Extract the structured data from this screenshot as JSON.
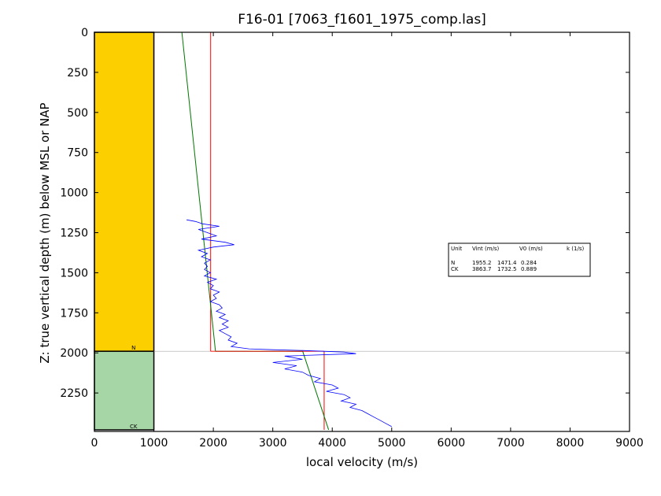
{
  "chart_data": {
    "type": "line",
    "title": "F16-01 [7063_f1601_1975_comp.las]",
    "xlabel": "local velocity (m/s)",
    "ylabel": "Z: true vertical depth (m) below MSL or NAP",
    "xlim": [
      0,
      9000
    ],
    "ylim": [
      2490,
      0
    ],
    "x_ticks": [
      "0",
      "1000",
      "2000",
      "3000",
      "4000",
      "5000",
      "6000",
      "7000",
      "8000",
      "9000"
    ],
    "y_ticks": [
      "0",
      "250",
      "500",
      "750",
      "1000",
      "1250",
      "1500",
      "1750",
      "2000",
      "2250"
    ],
    "grid": false,
    "colors": {
      "unit_N": "#fccf00",
      "unit_CK": "#a6d5a6",
      "well_log": "#0000ff",
      "vint_line": "#ff0000",
      "v0k_line": "#007700",
      "boundary": "#aaaaaa"
    },
    "units": [
      {
        "name": "N",
        "top": 0,
        "base": 1990
      },
      {
        "name": "CK",
        "top": 1990,
        "base": 2480
      }
    ],
    "interval_velocity_lines": [
      {
        "unit": "N",
        "points": [
          [
            1955,
            0
          ],
          [
            1955,
            1990
          ]
        ]
      },
      {
        "unit": "CK",
        "points": [
          [
            3864,
            1990
          ],
          [
            3864,
            2480
          ]
        ]
      }
    ],
    "v0k_lines": [
      {
        "unit": "N",
        "points": [
          [
            1471,
            0
          ],
          [
            2036,
            1990
          ]
        ]
      },
      {
        "unit": "CK",
        "points": [
          [
            3503,
            1990
          ],
          [
            3939,
            2480
          ]
        ]
      }
    ],
    "well_log": {
      "name": "local velocity",
      "points": [
        [
          1550,
          1170
        ],
        [
          1700,
          1180
        ],
        [
          1820,
          1195
        ],
        [
          2100,
          1210
        ],
        [
          1750,
          1230
        ],
        [
          1900,
          1250
        ],
        [
          2050,
          1270
        ],
        [
          1800,
          1290
        ],
        [
          2200,
          1310
        ],
        [
          2350,
          1325
        ],
        [
          2000,
          1340
        ],
        [
          1750,
          1360
        ],
        [
          1900,
          1380
        ],
        [
          1800,
          1400
        ],
        [
          1950,
          1420
        ],
        [
          1850,
          1440
        ],
        [
          1900,
          1460
        ],
        [
          1850,
          1480
        ],
        [
          1950,
          1500
        ],
        [
          1850,
          1520
        ],
        [
          2050,
          1540
        ],
        [
          1900,
          1560
        ],
        [
          2000,
          1580
        ],
        [
          1950,
          1600
        ],
        [
          2100,
          1620
        ],
        [
          2000,
          1640
        ],
        [
          2050,
          1660
        ],
        [
          1950,
          1680
        ],
        [
          2100,
          1700
        ],
        [
          2150,
          1720
        ],
        [
          2050,
          1740
        ],
        [
          2200,
          1760
        ],
        [
          2100,
          1780
        ],
        [
          2250,
          1800
        ],
        [
          2150,
          1820
        ],
        [
          2250,
          1840
        ],
        [
          2100,
          1860
        ],
        [
          2200,
          1880
        ],
        [
          2300,
          1900
        ],
        [
          2250,
          1920
        ],
        [
          2400,
          1940
        ],
        [
          2300,
          1960
        ],
        [
          2600,
          1975
        ],
        [
          3000,
          1980
        ],
        [
          3500,
          1985
        ],
        [
          4200,
          1995
        ],
        [
          4400,
          2005
        ],
        [
          3200,
          2020
        ],
        [
          3500,
          2040
        ],
        [
          3000,
          2060
        ],
        [
          3400,
          2080
        ],
        [
          3200,
          2100
        ],
        [
          3500,
          2120
        ],
        [
          3600,
          2140
        ],
        [
          3800,
          2160
        ],
        [
          3700,
          2180
        ],
        [
          4000,
          2200
        ],
        [
          4100,
          2220
        ],
        [
          3900,
          2240
        ],
        [
          4200,
          2260
        ],
        [
          4300,
          2280
        ],
        [
          4150,
          2300
        ],
        [
          4400,
          2320
        ],
        [
          4300,
          2340
        ],
        [
          4500,
          2360
        ],
        [
          4600,
          2380
        ],
        [
          4700,
          2400
        ],
        [
          4800,
          2420
        ],
        [
          4900,
          2440
        ],
        [
          5000,
          2460
        ]
      ]
    },
    "legend": {
      "placement": "right",
      "header": [
        "Unit",
        "Vint (m/s)",
        "V0 (m/s)",
        "k (1/s)"
      ],
      "rows": [
        [
          "N",
          "1955.2",
          "1471.4",
          "0.284"
        ],
        [
          "CK",
          "3863.7",
          "1732.5",
          "0.889"
        ]
      ]
    }
  }
}
